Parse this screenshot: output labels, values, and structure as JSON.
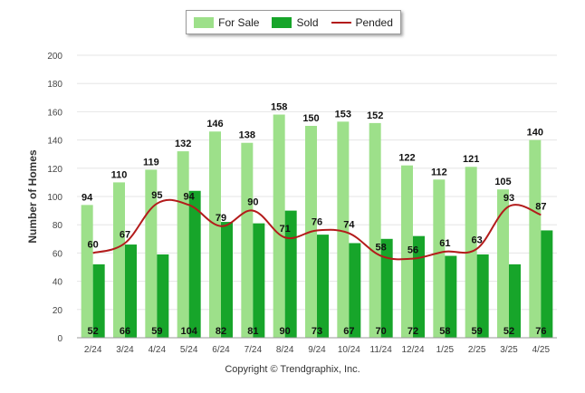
{
  "chart_data": {
    "type": "bar",
    "categories": [
      "2/24",
      "3/24",
      "4/24",
      "5/24",
      "6/24",
      "7/24",
      "8/24",
      "9/24",
      "10/24",
      "11/24",
      "12/24",
      "1/25",
      "2/25",
      "3/25",
      "4/25"
    ],
    "series": [
      {
        "name": "For Sale",
        "type": "bar",
        "color": "#9de08a",
        "values": [
          94,
          110,
          119,
          132,
          146,
          138,
          158,
          150,
          153,
          152,
          122,
          112,
          121,
          105,
          140
        ]
      },
      {
        "name": "Sold",
        "type": "bar",
        "color": "#17a52a",
        "values": [
          52,
          66,
          59,
          104,
          82,
          81,
          90,
          73,
          67,
          70,
          72,
          58,
          59,
          52,
          76
        ]
      },
      {
        "name": "Pended",
        "type": "line",
        "color": "#b31b1b",
        "values": [
          60,
          67,
          95,
          94,
          79,
          90,
          71,
          76,
          74,
          58,
          56,
          61,
          63,
          93,
          87
        ]
      }
    ],
    "ylabel": "Number of Homes",
    "ylim": [
      0,
      200
    ],
    "yticks": [
      0,
      20,
      40,
      60,
      80,
      100,
      120,
      140,
      160,
      180,
      200
    ],
    "grid": true,
    "legend_position": "top-center"
  },
  "footer": {
    "copyright": "Copyright © Trendgraphix, Inc."
  }
}
